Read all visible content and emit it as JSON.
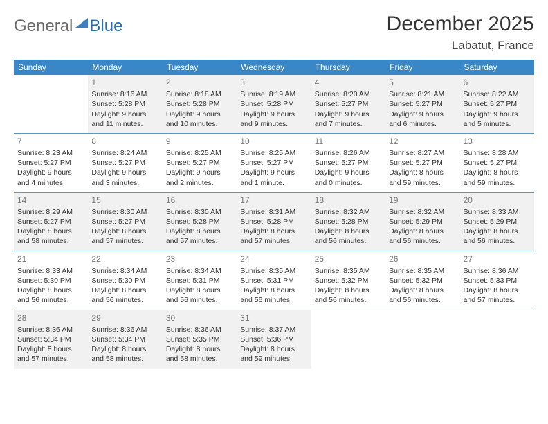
{
  "logo": {
    "part1": "General",
    "part2": "Blue"
  },
  "title": "December 2025",
  "location": "Labatut, France",
  "headers": [
    "Sunday",
    "Monday",
    "Tuesday",
    "Wednesday",
    "Thursday",
    "Friday",
    "Saturday"
  ],
  "colors": {
    "header_bg": "#3a87c7",
    "header_fg": "#ffffff",
    "rule": "#5a97c9",
    "gray_bg": "#f1f1f1",
    "logo_gray": "#6a6a6a",
    "logo_blue": "#2a6db3"
  },
  "weeks": [
    [
      {
        "n": "",
        "lines": []
      },
      {
        "n": "1",
        "gray": true,
        "lines": [
          "Sunrise: 8:16 AM",
          "Sunset: 5:28 PM",
          "Daylight: 9 hours",
          "and 11 minutes."
        ]
      },
      {
        "n": "2",
        "gray": true,
        "lines": [
          "Sunrise: 8:18 AM",
          "Sunset: 5:28 PM",
          "Daylight: 9 hours",
          "and 10 minutes."
        ]
      },
      {
        "n": "3",
        "gray": true,
        "lines": [
          "Sunrise: 8:19 AM",
          "Sunset: 5:28 PM",
          "Daylight: 9 hours",
          "and 9 minutes."
        ]
      },
      {
        "n": "4",
        "gray": true,
        "lines": [
          "Sunrise: 8:20 AM",
          "Sunset: 5:27 PM",
          "Daylight: 9 hours",
          "and 7 minutes."
        ]
      },
      {
        "n": "5",
        "gray": true,
        "lines": [
          "Sunrise: 8:21 AM",
          "Sunset: 5:27 PM",
          "Daylight: 9 hours",
          "and 6 minutes."
        ]
      },
      {
        "n": "6",
        "gray": true,
        "lines": [
          "Sunrise: 8:22 AM",
          "Sunset: 5:27 PM",
          "Daylight: 9 hours",
          "and 5 minutes."
        ]
      }
    ],
    [
      {
        "n": "7",
        "lines": [
          "Sunrise: 8:23 AM",
          "Sunset: 5:27 PM",
          "Daylight: 9 hours",
          "and 4 minutes."
        ]
      },
      {
        "n": "8",
        "lines": [
          "Sunrise: 8:24 AM",
          "Sunset: 5:27 PM",
          "Daylight: 9 hours",
          "and 3 minutes."
        ]
      },
      {
        "n": "9",
        "lines": [
          "Sunrise: 8:25 AM",
          "Sunset: 5:27 PM",
          "Daylight: 9 hours",
          "and 2 minutes."
        ]
      },
      {
        "n": "10",
        "lines": [
          "Sunrise: 8:25 AM",
          "Sunset: 5:27 PM",
          "Daylight: 9 hours",
          "and 1 minute."
        ]
      },
      {
        "n": "11",
        "lines": [
          "Sunrise: 8:26 AM",
          "Sunset: 5:27 PM",
          "Daylight: 9 hours",
          "and 0 minutes."
        ]
      },
      {
        "n": "12",
        "lines": [
          "Sunrise: 8:27 AM",
          "Sunset: 5:27 PM",
          "Daylight: 8 hours",
          "and 59 minutes."
        ]
      },
      {
        "n": "13",
        "lines": [
          "Sunrise: 8:28 AM",
          "Sunset: 5:27 PM",
          "Daylight: 8 hours",
          "and 59 minutes."
        ]
      }
    ],
    [
      {
        "n": "14",
        "gray": true,
        "lines": [
          "Sunrise: 8:29 AM",
          "Sunset: 5:27 PM",
          "Daylight: 8 hours",
          "and 58 minutes."
        ]
      },
      {
        "n": "15",
        "gray": true,
        "lines": [
          "Sunrise: 8:30 AM",
          "Sunset: 5:27 PM",
          "Daylight: 8 hours",
          "and 57 minutes."
        ]
      },
      {
        "n": "16",
        "gray": true,
        "lines": [
          "Sunrise: 8:30 AM",
          "Sunset: 5:28 PM",
          "Daylight: 8 hours",
          "and 57 minutes."
        ]
      },
      {
        "n": "17",
        "gray": true,
        "lines": [
          "Sunrise: 8:31 AM",
          "Sunset: 5:28 PM",
          "Daylight: 8 hours",
          "and 57 minutes."
        ]
      },
      {
        "n": "18",
        "gray": true,
        "lines": [
          "Sunrise: 8:32 AM",
          "Sunset: 5:28 PM",
          "Daylight: 8 hours",
          "and 56 minutes."
        ]
      },
      {
        "n": "19",
        "gray": true,
        "lines": [
          "Sunrise: 8:32 AM",
          "Sunset: 5:29 PM",
          "Daylight: 8 hours",
          "and 56 minutes."
        ]
      },
      {
        "n": "20",
        "gray": true,
        "lines": [
          "Sunrise: 8:33 AM",
          "Sunset: 5:29 PM",
          "Daylight: 8 hours",
          "and 56 minutes."
        ]
      }
    ],
    [
      {
        "n": "21",
        "lines": [
          "Sunrise: 8:33 AM",
          "Sunset: 5:30 PM",
          "Daylight: 8 hours",
          "and 56 minutes."
        ]
      },
      {
        "n": "22",
        "lines": [
          "Sunrise: 8:34 AM",
          "Sunset: 5:30 PM",
          "Daylight: 8 hours",
          "and 56 minutes."
        ]
      },
      {
        "n": "23",
        "lines": [
          "Sunrise: 8:34 AM",
          "Sunset: 5:31 PM",
          "Daylight: 8 hours",
          "and 56 minutes."
        ]
      },
      {
        "n": "24",
        "lines": [
          "Sunrise: 8:35 AM",
          "Sunset: 5:31 PM",
          "Daylight: 8 hours",
          "and 56 minutes."
        ]
      },
      {
        "n": "25",
        "lines": [
          "Sunrise: 8:35 AM",
          "Sunset: 5:32 PM",
          "Daylight: 8 hours",
          "and 56 minutes."
        ]
      },
      {
        "n": "26",
        "lines": [
          "Sunrise: 8:35 AM",
          "Sunset: 5:32 PM",
          "Daylight: 8 hours",
          "and 56 minutes."
        ]
      },
      {
        "n": "27",
        "lines": [
          "Sunrise: 8:36 AM",
          "Sunset: 5:33 PM",
          "Daylight: 8 hours",
          "and 57 minutes."
        ]
      }
    ],
    [
      {
        "n": "28",
        "gray": true,
        "lines": [
          "Sunrise: 8:36 AM",
          "Sunset: 5:34 PM",
          "Daylight: 8 hours",
          "and 57 minutes."
        ]
      },
      {
        "n": "29",
        "gray": true,
        "lines": [
          "Sunrise: 8:36 AM",
          "Sunset: 5:34 PM",
          "Daylight: 8 hours",
          "and 58 minutes."
        ]
      },
      {
        "n": "30",
        "gray": true,
        "lines": [
          "Sunrise: 8:36 AM",
          "Sunset: 5:35 PM",
          "Daylight: 8 hours",
          "and 58 minutes."
        ]
      },
      {
        "n": "31",
        "gray": true,
        "lines": [
          "Sunrise: 8:37 AM",
          "Sunset: 5:36 PM",
          "Daylight: 8 hours",
          "and 59 minutes."
        ]
      },
      {
        "n": "",
        "lines": []
      },
      {
        "n": "",
        "lines": []
      },
      {
        "n": "",
        "lines": []
      }
    ]
  ]
}
